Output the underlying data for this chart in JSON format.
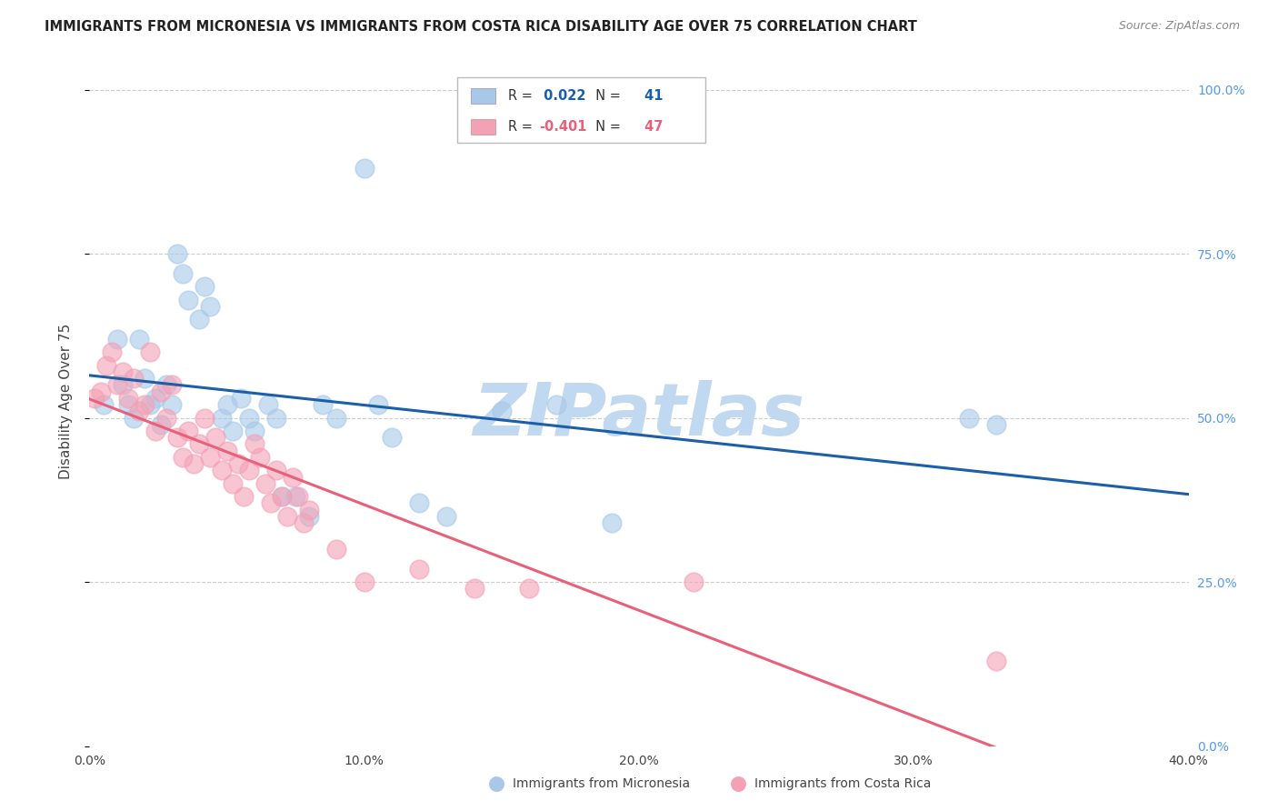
{
  "title": "IMMIGRANTS FROM MICRONESIA VS IMMIGRANTS FROM COSTA RICA DISABILITY AGE OVER 75 CORRELATION CHART",
  "source": "Source: ZipAtlas.com",
  "xlabel_ticks": [
    "0.0%",
    "10.0%",
    "20.0%",
    "30.0%",
    "40.0%"
  ],
  "xlabel_tick_vals": [
    0.0,
    0.1,
    0.2,
    0.3,
    0.4
  ],
  "ylabel": "Disability Age Over 75",
  "ylabel_ticks": [
    "100.0%",
    "75.0%",
    "50.0%",
    "25.0%",
    "0.0%"
  ],
  "ylabel_tick_vals": [
    1.0,
    0.75,
    0.5,
    0.25,
    0.0
  ],
  "xlim": [
    0.0,
    0.4
  ],
  "ylim": [
    0.0,
    1.05
  ],
  "micronesia_R": 0.022,
  "micronesia_N": 41,
  "costarica_R": -0.401,
  "costarica_N": 47,
  "micronesia_color": "#a8c8e8",
  "costarica_color": "#f4a0b5",
  "micronesia_line_color": "#1a5fa8",
  "costarica_line_color": "#e8607a",
  "micronesia_x": [
    0.005,
    0.01,
    0.012,
    0.014,
    0.016,
    0.018,
    0.02,
    0.022,
    0.024,
    0.026,
    0.028,
    0.03,
    0.032,
    0.034,
    0.036,
    0.04,
    0.042,
    0.044,
    0.048,
    0.05,
    0.052,
    0.055,
    0.058,
    0.06,
    0.065,
    0.068,
    0.07,
    0.075,
    0.08,
    0.085,
    0.09,
    0.1,
    0.105,
    0.11,
    0.12,
    0.13,
    0.15,
    0.17,
    0.19,
    0.32,
    0.33
  ],
  "micronesia_y": [
    0.52,
    0.62,
    0.55,
    0.52,
    0.5,
    0.62,
    0.56,
    0.52,
    0.53,
    0.49,
    0.55,
    0.52,
    0.75,
    0.72,
    0.68,
    0.65,
    0.7,
    0.67,
    0.5,
    0.52,
    0.48,
    0.53,
    0.5,
    0.48,
    0.52,
    0.5,
    0.38,
    0.38,
    0.35,
    0.52,
    0.5,
    0.88,
    0.52,
    0.47,
    0.37,
    0.35,
    0.51,
    0.52,
    0.34,
    0.5,
    0.49
  ],
  "costarica_x": [
    0.002,
    0.004,
    0.006,
    0.008,
    0.01,
    0.012,
    0.014,
    0.016,
    0.018,
    0.02,
    0.022,
    0.024,
    0.026,
    0.028,
    0.03,
    0.032,
    0.034,
    0.036,
    0.038,
    0.04,
    0.042,
    0.044,
    0.046,
    0.048,
    0.05,
    0.052,
    0.054,
    0.056,
    0.058,
    0.06,
    0.062,
    0.064,
    0.066,
    0.068,
    0.07,
    0.072,
    0.074,
    0.076,
    0.078,
    0.08,
    0.09,
    0.1,
    0.12,
    0.14,
    0.16,
    0.22,
    0.33
  ],
  "costarica_y": [
    0.53,
    0.54,
    0.58,
    0.6,
    0.55,
    0.57,
    0.53,
    0.56,
    0.51,
    0.52,
    0.6,
    0.48,
    0.54,
    0.5,
    0.55,
    0.47,
    0.44,
    0.48,
    0.43,
    0.46,
    0.5,
    0.44,
    0.47,
    0.42,
    0.45,
    0.4,
    0.43,
    0.38,
    0.42,
    0.46,
    0.44,
    0.4,
    0.37,
    0.42,
    0.38,
    0.35,
    0.41,
    0.38,
    0.34,
    0.36,
    0.3,
    0.25,
    0.27,
    0.24,
    0.24,
    0.25,
    0.13
  ],
  "background_color": "#ffffff",
  "grid_color": "#cccccc",
  "watermark_text": "ZIPatlas",
  "watermark_color": "#c0d8f0"
}
